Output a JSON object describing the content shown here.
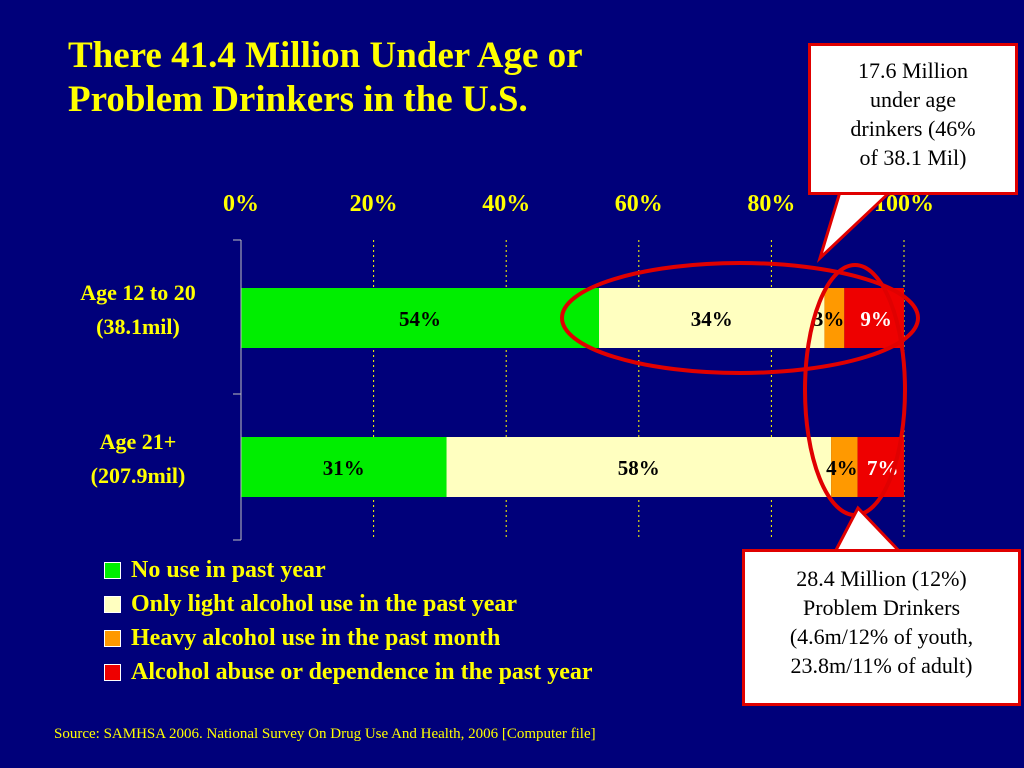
{
  "title_lines": [
    "There 41.4 Million Under Age or",
    "Problem Drinkers in the U.S."
  ],
  "callout_top": [
    "17.6 Million",
    "under age",
    "drinkers (46%",
    "of 38.1 Mil)"
  ],
  "callout_bottom": [
    "28.4 Million (12%)",
    "Problem Drinkers",
    "(4.6m/12% of youth,",
    "23.8m/11% of adult)"
  ],
  "source": "Source:  SAMHSA 2006. National Survey On Drug Use And Health, 2006 [Computer file]",
  "colors": {
    "background": "#00007a",
    "text": "#ffff00",
    "callout_border": "#e00000",
    "ellipse": "#e00000"
  },
  "chart_data": {
    "type": "bar",
    "orientation": "horizontal",
    "stacked": true,
    "categories": [
      [
        "Age 12 to 20",
        "(38.1mil)"
      ],
      [
        "Age 21+",
        "(207.9mil)"
      ]
    ],
    "series": [
      {
        "name": "No use in past year",
        "color": "#00ee00",
        "values": [
          54,
          31
        ],
        "labels": [
          "54%",
          "31%"
        ],
        "label_color": "#000000"
      },
      {
        "name": "Only light alcohol use in the past year",
        "color": "#ffffc0",
        "values": [
          34,
          58
        ],
        "labels": [
          "34%",
          "58%"
        ],
        "label_color": "#000000"
      },
      {
        "name": "Heavy alcohol use in the past month",
        "color": "#ff9900",
        "values": [
          3,
          4
        ],
        "labels": [
          "3%",
          "4%"
        ],
        "label_color": "#000000"
      },
      {
        "name": "Alcohol abuse or dependence in the past year",
        "color": "#ee0000",
        "values": [
          9,
          7
        ],
        "labels": [
          "9%",
          "7%"
        ],
        "label_color": "#ffffff"
      }
    ],
    "xaxis_ticks": [
      "0%",
      "20%",
      "40%",
      "60%",
      "80%",
      "100%"
    ],
    "xlim": [
      0,
      100
    ],
    "axis_position": "top",
    "grid": true,
    "legend_position": "bottom-left"
  }
}
